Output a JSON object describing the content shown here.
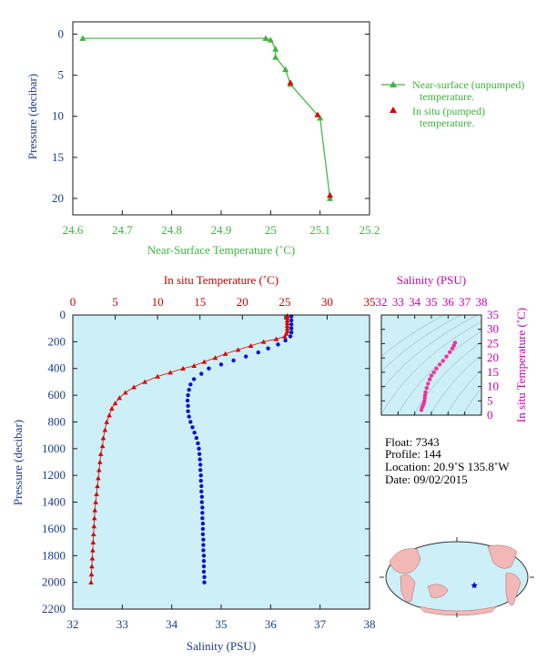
{
  "colors": {
    "near_surface": "#3cb43c",
    "in_situ": "#dd0000",
    "salinity": "#0a14c8",
    "ts_curve": "#ee3399",
    "magenta_axis": "#cc00aa",
    "plot_bg": "#cdeff7",
    "frame": "#1a1a1a",
    "land": "#f2b8b8",
    "ocean": "#cdeff7",
    "float_marker": "#0000cc"
  },
  "chart_data": [
    {
      "id": "near_surface",
      "type": "line",
      "xlabel": "Near-Surface Temperature (˚C)",
      "ylabel": "Pressure (decibar)",
      "xlim": [
        24.6,
        25.2
      ],
      "ylim": [
        22,
        -1.5
      ],
      "x_ticks": [
        "24.6",
        "24.7",
        "24.8",
        "24.9",
        "25",
        "25.1",
        "25.2"
      ],
      "y_ticks": [
        "0",
        "5",
        "10",
        "15",
        "20"
      ],
      "series": [
        {
          "name": "Near-surface (unpumped) temperature.",
          "marker": "triangle-line",
          "points": [
            [
              24.62,
              0.5
            ],
            [
              24.99,
              0.5
            ],
            [
              25.0,
              0.7
            ],
            [
              25.01,
              1.8
            ],
            [
              25.01,
              2.8
            ],
            [
              25.03,
              4.3
            ],
            [
              25.04,
              6.1
            ],
            [
              25.1,
              10.2
            ],
            [
              25.12,
              20.0
            ]
          ]
        },
        {
          "name": "In situ (pumped) temperature.",
          "marker": "triangle",
          "points": [
            [
              25.04,
              5.9
            ],
            [
              25.095,
              9.8
            ],
            [
              25.12,
              19.6
            ]
          ]
        }
      ]
    },
    {
      "id": "profile",
      "type": "scatter",
      "ylabel": "Pressure (decibar)",
      "top_xlabel": "In situ Temperature (˚C)",
      "bottom_xlabel": "Salinity (PSU)",
      "temp_xlim": [
        0,
        35
      ],
      "sal_xlim": [
        32,
        38
      ],
      "ylim": [
        2200,
        0
      ],
      "temp_ticks": [
        "0",
        "5",
        "10",
        "15",
        "20",
        "25",
        "30",
        "35"
      ],
      "sal_ticks": [
        "32",
        "33",
        "34",
        "35",
        "36",
        "37",
        "38"
      ],
      "y_ticks": [
        "0",
        "200",
        "400",
        "600",
        "800",
        "1000",
        "1200",
        "1400",
        "1600",
        "1800",
        "2000",
        "2200"
      ],
      "temperature": [
        [
          25.3,
          5
        ],
        [
          25.3,
          20
        ],
        [
          25.3,
          40
        ],
        [
          25.3,
          60
        ],
        [
          25.3,
          80
        ],
        [
          25.3,
          100
        ],
        [
          25.3,
          120
        ],
        [
          25.2,
          140
        ],
        [
          25.0,
          160
        ],
        [
          24.0,
          180
        ],
        [
          22.5,
          200
        ],
        [
          21.0,
          230
        ],
        [
          19.5,
          260
        ],
        [
          18.0,
          290
        ],
        [
          16.8,
          320
        ],
        [
          15.5,
          350
        ],
        [
          14.3,
          380
        ],
        [
          13.0,
          400
        ],
        [
          11.5,
          430
        ],
        [
          10.0,
          460
        ],
        [
          8.5,
          500
        ],
        [
          7.2,
          540
        ],
        [
          6.2,
          580
        ],
        [
          5.5,
          620
        ],
        [
          5.0,
          660
        ],
        [
          4.6,
          700
        ],
        [
          4.3,
          750
        ],
        [
          4.0,
          800
        ],
        [
          3.8,
          860
        ],
        [
          3.6,
          920
        ],
        [
          3.5,
          980
        ],
        [
          3.3,
          1040
        ],
        [
          3.2,
          1100
        ],
        [
          3.1,
          1160
        ],
        [
          3.0,
          1220
        ],
        [
          2.9,
          1280
        ],
        [
          2.8,
          1340
        ],
        [
          2.7,
          1400
        ],
        [
          2.6,
          1460
        ],
        [
          2.55,
          1520
        ],
        [
          2.5,
          1580
        ],
        [
          2.45,
          1640
        ],
        [
          2.4,
          1700
        ],
        [
          2.35,
          1760
        ],
        [
          2.3,
          1820
        ],
        [
          2.25,
          1880
        ],
        [
          2.2,
          1940
        ],
        [
          2.15,
          2000
        ]
      ],
      "salinity": [
        [
          36.42,
          10
        ],
        [
          36.42,
          40
        ],
        [
          36.42,
          70
        ],
        [
          36.42,
          100
        ],
        [
          36.42,
          130
        ],
        [
          36.4,
          160
        ],
        [
          36.3,
          190
        ],
        [
          36.15,
          220
        ],
        [
          35.95,
          250
        ],
        [
          35.75,
          280
        ],
        [
          35.5,
          310
        ],
        [
          35.25,
          340
        ],
        [
          35.0,
          370
        ],
        [
          34.75,
          400
        ],
        [
          34.6,
          440
        ],
        [
          34.45,
          480
        ],
        [
          34.38,
          520
        ],
        [
          34.35,
          560
        ],
        [
          34.33,
          600
        ],
        [
          34.32,
          640
        ],
        [
          34.33,
          680
        ],
        [
          34.33,
          720
        ],
        [
          34.35,
          760
        ],
        [
          34.38,
          800
        ],
        [
          34.42,
          840
        ],
        [
          34.46,
          880
        ],
        [
          34.5,
          920
        ],
        [
          34.53,
          960
        ],
        [
          34.55,
          1000
        ],
        [
          34.56,
          1040
        ],
        [
          34.57,
          1080
        ],
        [
          34.58,
          1120
        ],
        [
          34.58,
          1160
        ],
        [
          34.59,
          1200
        ],
        [
          34.59,
          1240
        ],
        [
          34.6,
          1280
        ],
        [
          34.6,
          1320
        ],
        [
          34.61,
          1360
        ],
        [
          34.61,
          1400
        ],
        [
          34.62,
          1440
        ],
        [
          34.62,
          1480
        ],
        [
          34.62,
          1520
        ],
        [
          34.63,
          1560
        ],
        [
          34.63,
          1600
        ],
        [
          34.63,
          1640
        ],
        [
          34.64,
          1680
        ],
        [
          34.64,
          1720
        ],
        [
          34.64,
          1760
        ],
        [
          34.65,
          1800
        ],
        [
          34.65,
          1840
        ],
        [
          34.65,
          1880
        ],
        [
          34.65,
          1920
        ],
        [
          34.66,
          1960
        ],
        [
          34.66,
          2000
        ]
      ]
    },
    {
      "id": "ts_diagram",
      "type": "scatter",
      "xlabel": "Salinity (PSU)",
      "ylabel": "In situ Temperature (˚C)",
      "xlim": [
        32,
        38
      ],
      "ylim": [
        0,
        35
      ],
      "x_ticks": [
        "32",
        "33",
        "34",
        "35",
        "36",
        "37",
        "38"
      ],
      "y_ticks": [
        "0",
        "5",
        "10",
        "15",
        "20",
        "25",
        "30",
        "35"
      ],
      "points": [
        [
          34.4,
          1.8
        ],
        [
          34.45,
          2.8
        ],
        [
          34.5,
          3.5
        ],
        [
          34.55,
          4.2
        ],
        [
          34.58,
          5.0
        ],
        [
          34.6,
          6.0
        ],
        [
          34.62,
          7.0
        ],
        [
          34.65,
          8.0
        ],
        [
          34.72,
          9.5
        ],
        [
          34.8,
          11.0
        ],
        [
          34.9,
          12.5
        ],
        [
          35.0,
          13.8
        ],
        [
          35.15,
          15.0
        ],
        [
          35.3,
          16.3
        ],
        [
          35.5,
          17.7
        ],
        [
          35.7,
          19.0
        ],
        [
          35.9,
          20.5
        ],
        [
          36.1,
          22.0
        ],
        [
          36.25,
          23.3
        ],
        [
          36.35,
          24.3
        ],
        [
          36.42,
          25.3
        ]
      ]
    }
  ],
  "legend": {
    "near_surface_line1": "Near-surface (unpumped)",
    "near_surface_line2": "temperature.",
    "in_situ_line1": "In situ (pumped)",
    "in_situ_line2": "temperature."
  },
  "info": {
    "float": "Float:  7343",
    "profile": "Profile:  144",
    "location": "Location:  20.9˚S  135.8˚W",
    "date": "Date:  09/02/2015"
  },
  "map": {
    "float_lat": -20.9,
    "float_lon": -135.8
  }
}
